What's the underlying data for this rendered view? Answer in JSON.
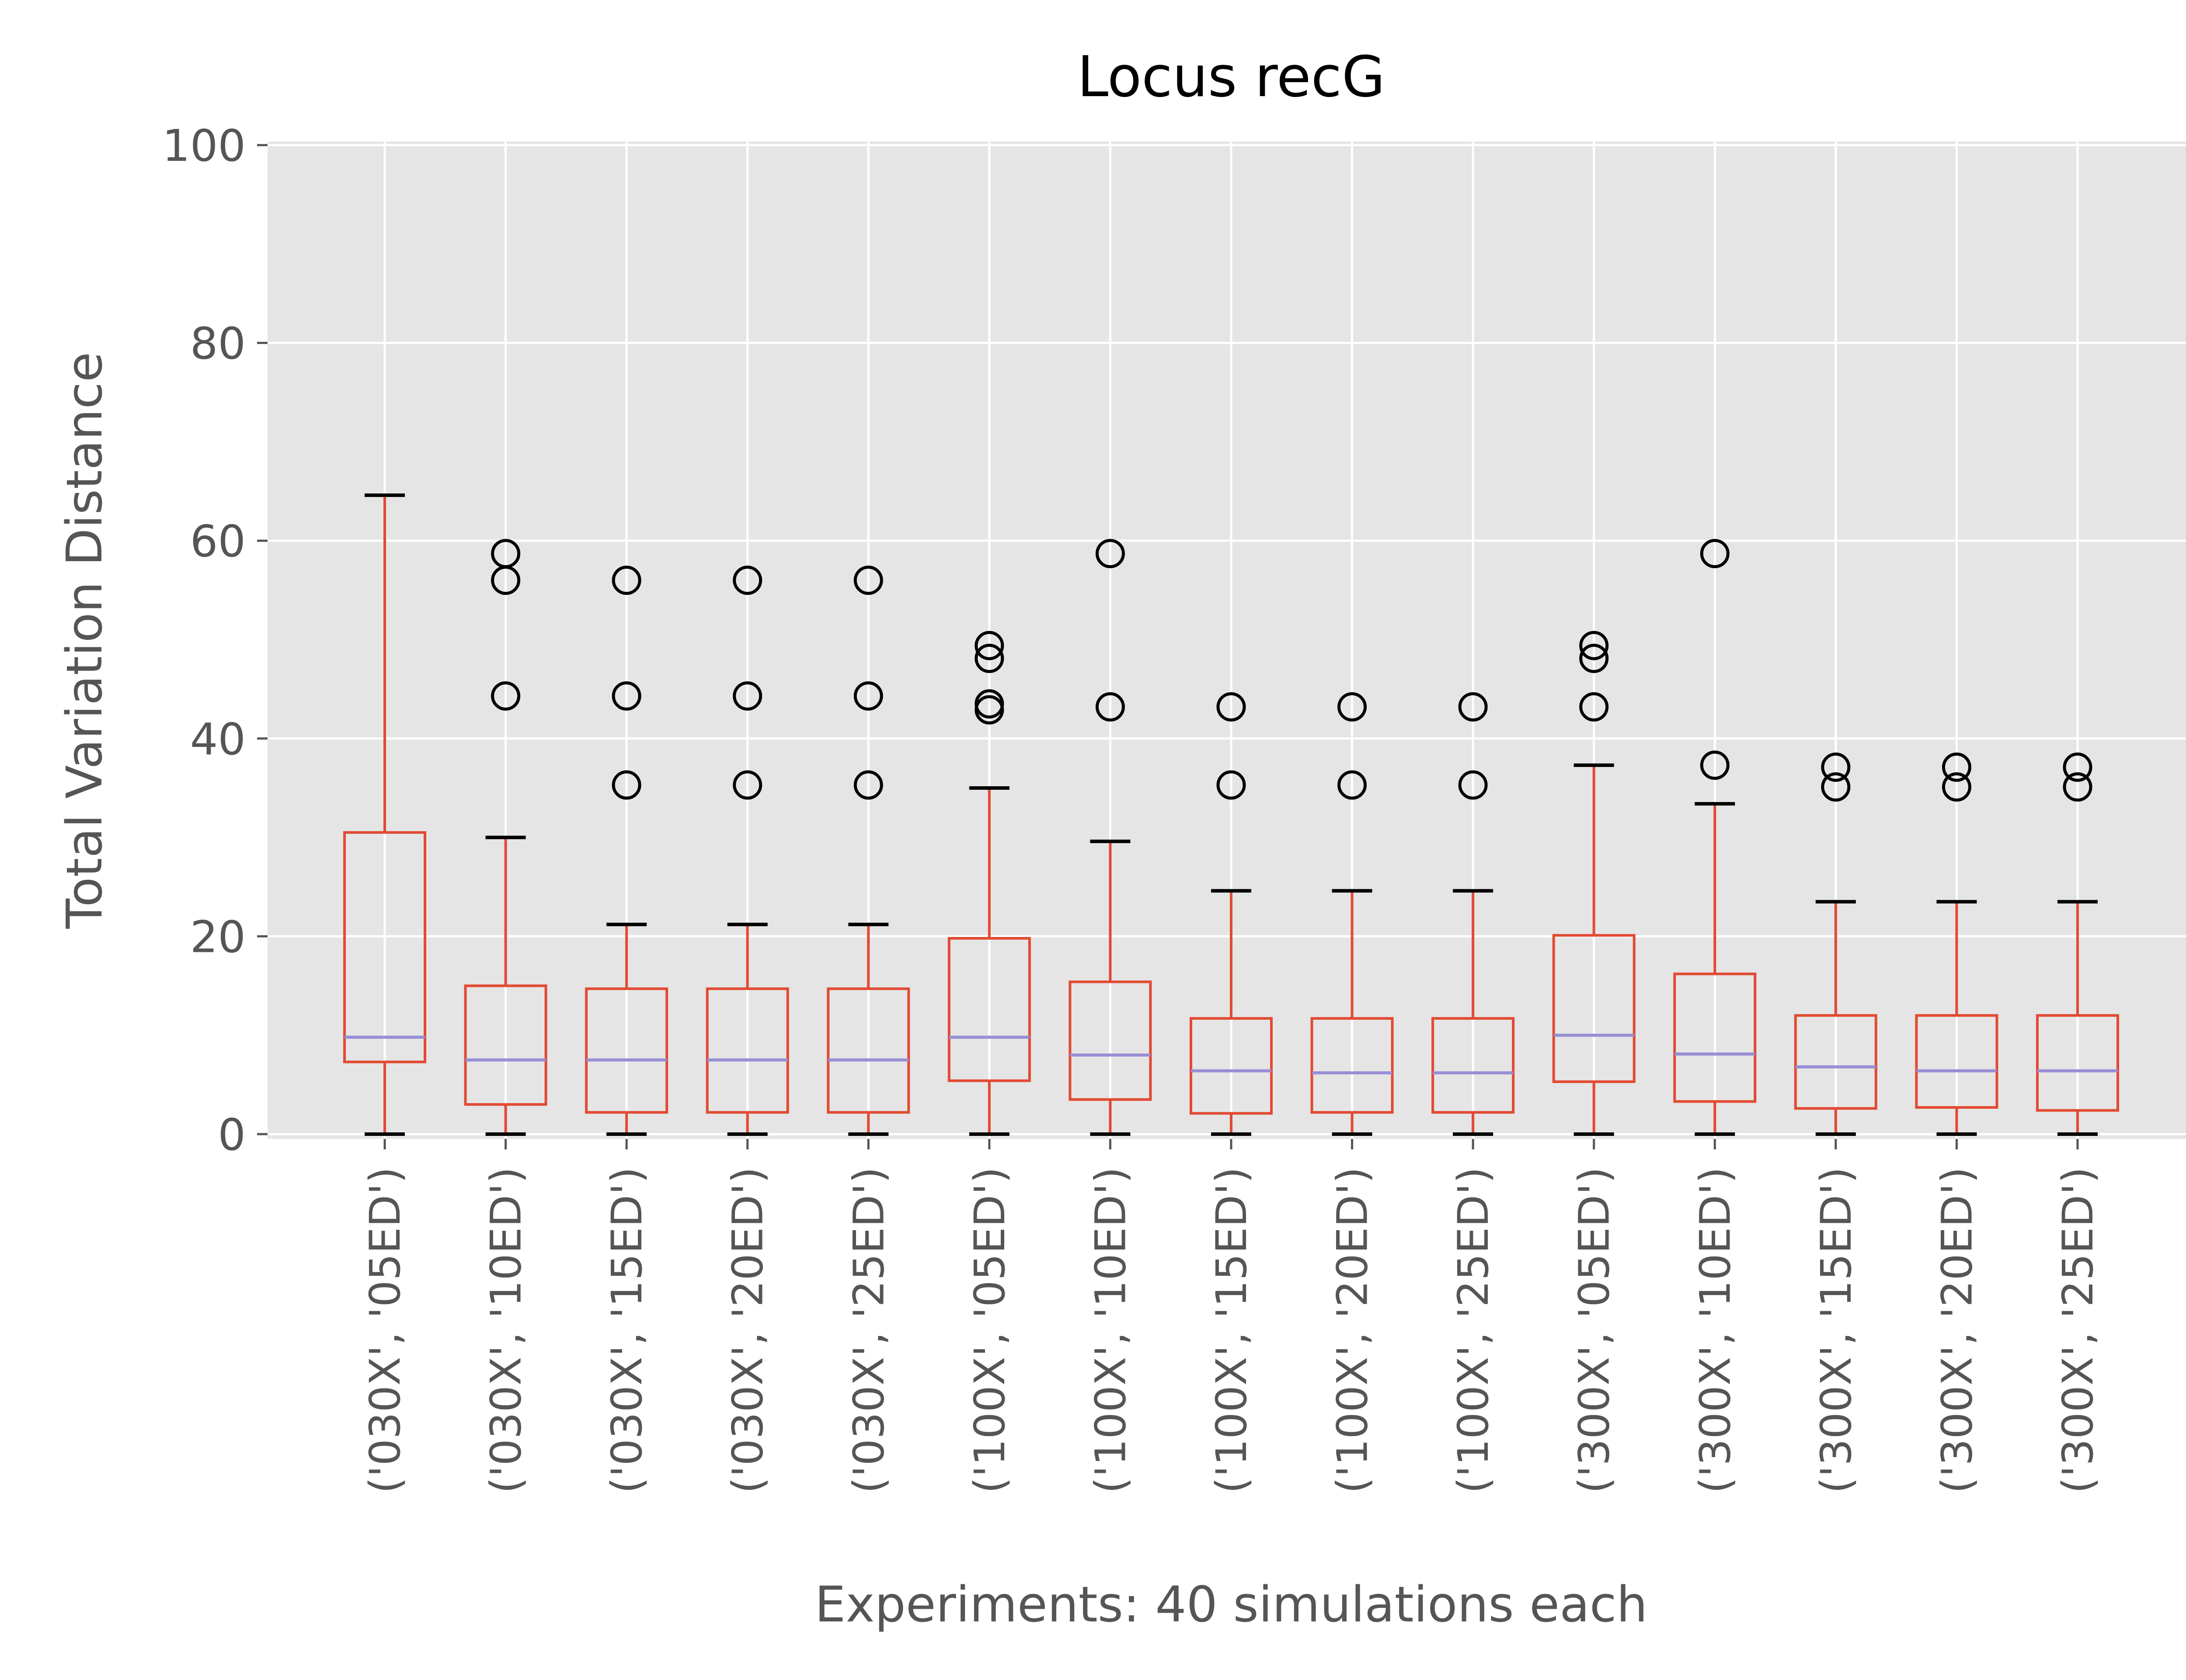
{
  "chart_data": {
    "type": "box",
    "title": "Locus recG",
    "xlabel": "Experiments: 40 simulations each",
    "ylabel": "Total Variation Distance",
    "ylim": [
      0,
      100
    ],
    "yticks": [
      0,
      20,
      40,
      60,
      80,
      100
    ],
    "grid": true,
    "colors": {
      "background": "#e5e5e5",
      "grid": "#ffffff",
      "box": "#e24a33",
      "median": "#988ed5",
      "whisker": "#e24a33",
      "cap": "#000000",
      "outlier": "#000000",
      "tick_label": "#555555",
      "title": "#000000"
    },
    "categories": [
      "('030X', '05ED')",
      "('030X', '10ED')",
      "('030X', '15ED')",
      "('030X', '20ED')",
      "('030X', '25ED')",
      "('100X', '05ED')",
      "('100X', '10ED')",
      "('100X', '15ED')",
      "('100X', '20ED')",
      "('100X', '25ED')",
      "('300X', '05ED')",
      "('300X', '10ED')",
      "('300X', '15ED')",
      "('300X', '20ED')",
      "('300X', '25ED')"
    ],
    "boxes": [
      {
        "whislo": 0,
        "q1": 7.3,
        "med": 9.8,
        "q3": 30.5,
        "whishi": 64.6,
        "fliers": []
      },
      {
        "whislo": 0,
        "q1": 3.0,
        "med": 7.5,
        "q3": 15.0,
        "whishi": 30.0,
        "fliers": [
          58.7,
          56.0,
          44.3
        ]
      },
      {
        "whislo": 0,
        "q1": 2.2,
        "med": 7.5,
        "q3": 14.7,
        "whishi": 21.2,
        "fliers": [
          56.0,
          44.3,
          35.3
        ]
      },
      {
        "whislo": 0,
        "q1": 2.2,
        "med": 7.5,
        "q3": 14.7,
        "whishi": 21.2,
        "fliers": [
          56.0,
          44.3,
          35.3
        ]
      },
      {
        "whislo": 0,
        "q1": 2.2,
        "med": 7.5,
        "q3": 14.7,
        "whishi": 21.2,
        "fliers": [
          56.0,
          44.3,
          35.3
        ]
      },
      {
        "whislo": 0,
        "q1": 5.4,
        "med": 9.8,
        "q3": 19.8,
        "whishi": 35.0,
        "fliers": [
          49.4,
          48.1,
          43.5,
          42.9
        ]
      },
      {
        "whislo": 0,
        "q1": 3.5,
        "med": 8.0,
        "q3": 15.4,
        "whishi": 29.6,
        "fliers": [
          58.7,
          43.2
        ]
      },
      {
        "whislo": 0,
        "q1": 2.1,
        "med": 6.4,
        "q3": 11.7,
        "whishi": 24.6,
        "fliers": [
          43.2,
          35.3
        ]
      },
      {
        "whislo": 0,
        "q1": 2.2,
        "med": 6.2,
        "q3": 11.7,
        "whishi": 24.6,
        "fliers": [
          43.2,
          35.3
        ]
      },
      {
        "whislo": 0,
        "q1": 2.2,
        "med": 6.2,
        "q3": 11.7,
        "whishi": 24.6,
        "fliers": [
          43.2,
          35.3
        ]
      },
      {
        "whislo": 0,
        "q1": 5.3,
        "med": 10.0,
        "q3": 20.1,
        "whishi": 37.3,
        "fliers": [
          49.4,
          48.1,
          43.2
        ]
      },
      {
        "whislo": 0,
        "q1": 3.3,
        "med": 8.1,
        "q3": 16.2,
        "whishi": 33.4,
        "fliers": [
          58.7,
          37.3
        ]
      },
      {
        "whislo": 0,
        "q1": 2.6,
        "med": 6.8,
        "q3": 12.0,
        "whishi": 23.5,
        "fliers": [
          37.1,
          35.1
        ]
      },
      {
        "whislo": 0,
        "q1": 2.7,
        "med": 6.4,
        "q3": 12.0,
        "whishi": 23.5,
        "fliers": [
          37.1,
          35.1
        ]
      },
      {
        "whislo": 0,
        "q1": 2.4,
        "med": 6.4,
        "q3": 12.0,
        "whishi": 23.5,
        "fliers": [
          37.1,
          35.1
        ]
      }
    ]
  }
}
